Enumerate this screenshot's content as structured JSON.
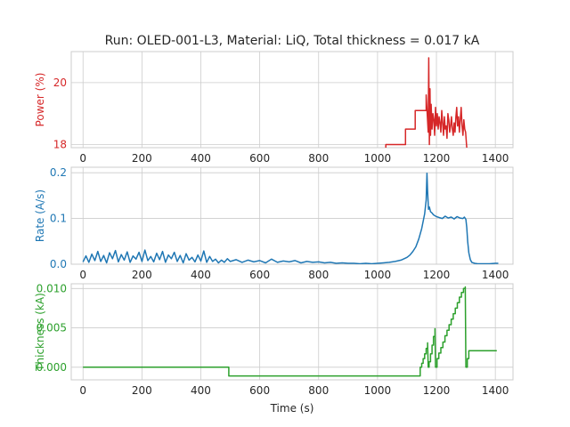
{
  "figure": {
    "title": "Run: OLED-001-L3, Material: LiQ, Total thickness = 0.017 kA"
  },
  "chart_data": [
    {
      "type": "line",
      "id": "power",
      "ylabel": "Power (%)",
      "xlabel": "",
      "color": "#d62728",
      "xlim": [
        -40,
        1460
      ],
      "ylim": [
        17.9,
        21.0
      ],
      "xticks": [
        0,
        200,
        400,
        600,
        800,
        1000,
        1200,
        1400
      ],
      "yticks": [
        18,
        20
      ],
      "grid": true,
      "series": [
        {
          "x": [
            1028,
            1028,
            1095,
            1095,
            1128,
            1128,
            1165,
            1165,
            1172,
            1174,
            1176,
            1178,
            1180,
            1182,
            1185,
            1188,
            1191,
            1194,
            1197,
            1200,
            1203,
            1206,
            1209,
            1212,
            1215,
            1218,
            1221,
            1224,
            1227,
            1230,
            1233,
            1236,
            1239,
            1242,
            1245,
            1248,
            1251,
            1254,
            1257,
            1260,
            1263,
            1266,
            1269,
            1272,
            1275,
            1278,
            1281,
            1284,
            1287,
            1290,
            1293,
            1296,
            1299,
            1302,
            1303
          ],
          "y": [
            17.9,
            18.0,
            18.0,
            18.5,
            18.5,
            19.1,
            19.1,
            19.6,
            18.4,
            20.8,
            18.0,
            19.8,
            18.3,
            19.3,
            18.5,
            19.0,
            18.8,
            18.3,
            19.2,
            18.6,
            19.0,
            18.5,
            18.9,
            18.7,
            18.4,
            19.1,
            18.7,
            18.3,
            18.9,
            18.5,
            18.6,
            18.2,
            19.0,
            18.8,
            18.4,
            18.6,
            18.9,
            18.5,
            18.3,
            18.7,
            18.4,
            18.9,
            19.2,
            18.6,
            18.9,
            18.4,
            18.8,
            19.2,
            18.6,
            18.3,
            18.8,
            18.5,
            18.4,
            18.0,
            17.9
          ]
        }
      ]
    },
    {
      "type": "line",
      "id": "rate",
      "ylabel": "Rate (A/s)",
      "xlabel": "",
      "color": "#1f77b4",
      "xlim": [
        -40,
        1460
      ],
      "ylim": [
        0.0,
        0.212
      ],
      "xticks": [
        0,
        200,
        400,
        600,
        800,
        1000,
        1200,
        1400
      ],
      "yticks": [
        0.0,
        0.1,
        0.2
      ],
      "yticklabels": [
        "0.0",
        "0.1",
        "0.2"
      ],
      "grid": true,
      "series": [
        {
          "x": [
            0,
            10,
            20,
            30,
            40,
            50,
            60,
            70,
            80,
            90,
            100,
            110,
            120,
            130,
            140,
            150,
            160,
            170,
            180,
            190,
            200,
            210,
            220,
            230,
            240,
            250,
            260,
            270,
            280,
            290,
            300,
            310,
            320,
            330,
            340,
            350,
            360,
            370,
            380,
            390,
            400,
            410,
            420,
            430,
            440,
            450,
            460,
            470,
            480,
            490,
            500,
            520,
            540,
            560,
            580,
            600,
            620,
            640,
            660,
            680,
            700,
            720,
            740,
            760,
            780,
            800,
            820,
            840,
            860,
            880,
            900,
            920,
            940,
            960,
            980,
            1000,
            1020,
            1040,
            1060,
            1080,
            1100,
            1110,
            1120,
            1130,
            1140,
            1150,
            1160,
            1165,
            1168,
            1170,
            1173,
            1176,
            1180,
            1185,
            1190,
            1200,
            1210,
            1220,
            1230,
            1240,
            1250,
            1260,
            1270,
            1280,
            1290,
            1295,
            1300,
            1303,
            1306,
            1310,
            1315,
            1320,
            1330,
            1340,
            1360,
            1380,
            1400,
            1410
          ],
          "y": [
            0.005,
            0.018,
            0.004,
            0.022,
            0.008,
            0.028,
            0.006,
            0.019,
            0.003,
            0.025,
            0.012,
            0.03,
            0.005,
            0.021,
            0.009,
            0.027,
            0.004,
            0.018,
            0.011,
            0.026,
            0.006,
            0.031,
            0.008,
            0.017,
            0.005,
            0.024,
            0.01,
            0.028,
            0.004,
            0.02,
            0.012,
            0.026,
            0.006,
            0.019,
            0.003,
            0.023,
            0.009,
            0.015,
            0.005,
            0.02,
            0.007,
            0.029,
            0.004,
            0.017,
            0.006,
            0.011,
            0.003,
            0.009,
            0.004,
            0.012,
            0.006,
            0.01,
            0.004,
            0.009,
            0.005,
            0.008,
            0.003,
            0.011,
            0.004,
            0.007,
            0.005,
            0.008,
            0.003,
            0.006,
            0.004,
            0.005,
            0.003,
            0.004,
            0.002,
            0.003,
            0.002,
            0.002,
            0.001,
            0.002,
            0.001,
            0.002,
            0.003,
            0.004,
            0.006,
            0.009,
            0.015,
            0.02,
            0.028,
            0.038,
            0.055,
            0.078,
            0.11,
            0.14,
            0.199,
            0.16,
            0.12,
            0.125,
            0.115,
            0.112,
            0.108,
            0.104,
            0.102,
            0.1,
            0.105,
            0.101,
            0.103,
            0.099,
            0.104,
            0.101,
            0.1,
            0.103,
            0.098,
            0.08,
            0.05,
            0.025,
            0.01,
            0.004,
            0.002,
            0.001,
            0.001,
            0.001,
            0.002,
            0.002
          ]
        }
      ]
    },
    {
      "type": "line",
      "id": "thickness",
      "ylabel": "Thickness (kA)",
      "xlabel": "Time (s)",
      "color": "#2ca02c",
      "xlim": [
        -40,
        1460
      ],
      "ylim": [
        -0.0016,
        0.0106
      ],
      "xticks": [
        0,
        200,
        400,
        600,
        800,
        1000,
        1200,
        1400
      ],
      "yticks": [
        0.0,
        0.005,
        0.01
      ],
      "yticklabels": [
        "0.000",
        "0.005",
        "0.010"
      ],
      "grid": true,
      "series": [
        {
          "x": [
            0,
            495,
            495,
            1135,
            1145,
            1145,
            1150,
            1150,
            1155,
            1155,
            1160,
            1160,
            1165,
            1165,
            1170,
            1170,
            1172,
            1175,
            1175,
            1180,
            1180,
            1185,
            1185,
            1190,
            1190,
            1195,
            1195,
            1197,
            1202,
            1202,
            1208,
            1208,
            1215,
            1215,
            1222,
            1222,
            1229,
            1229,
            1236,
            1236,
            1243,
            1243,
            1250,
            1250,
            1257,
            1257,
            1264,
            1264,
            1271,
            1271,
            1278,
            1278,
            1285,
            1285,
            1292,
            1292,
            1298,
            1298,
            1300,
            1305,
            1305,
            1310,
            1310,
            1315,
            1315,
            1405
          ],
          "y": [
            0.0,
            0.0,
            -0.0011,
            -0.0011,
            -0.0011,
            0.0,
            0.0,
            0.0005,
            0.0005,
            0.0011,
            0.0011,
            0.0017,
            0.0017,
            0.0024,
            0.0024,
            0.0031,
            0.0,
            0.0,
            0.0007,
            0.0007,
            0.0017,
            0.0017,
            0.0028,
            0.0028,
            0.0039,
            0.0039,
            0.0049,
            0.0,
            0.0,
            0.0011,
            0.0011,
            0.0018,
            0.0018,
            0.0025,
            0.0025,
            0.0032,
            0.0032,
            0.004,
            0.004,
            0.0047,
            0.0047,
            0.0054,
            0.0054,
            0.0061,
            0.0061,
            0.0068,
            0.0068,
            0.0075,
            0.0075,
            0.0082,
            0.0082,
            0.0089,
            0.0089,
            0.0095,
            0.0095,
            0.01,
            0.01,
            0.0102,
            0.0,
            0.0,
            0.0011,
            0.0011,
            0.0021,
            0.0021,
            0.0021,
            0.0021
          ]
        }
      ]
    }
  ]
}
